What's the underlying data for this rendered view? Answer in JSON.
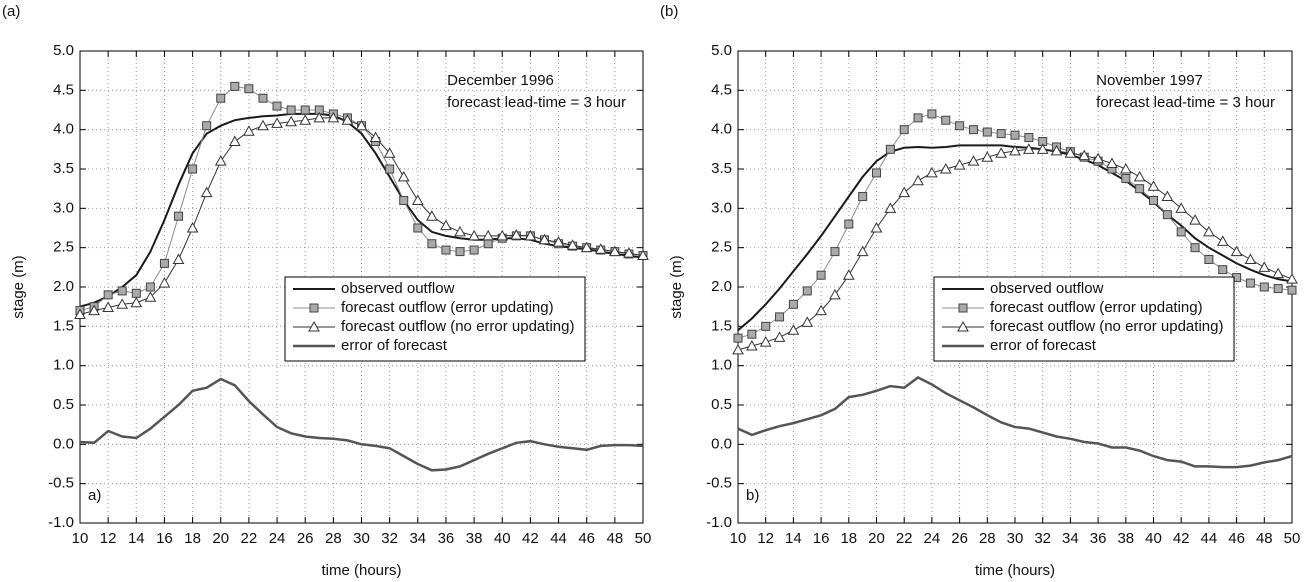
{
  "chart_data": [
    {
      "type": "line",
      "panel_label": "(a)",
      "inner_label": "a)",
      "annotations": [
        "December 1996",
        "forecast lead-time = 3 hour"
      ],
      "x_label": "time (hours)",
      "y_label": "stage (m)",
      "x": [
        10,
        11,
        12,
        13,
        14,
        15,
        16,
        17,
        18,
        19,
        20,
        21,
        22,
        23,
        24,
        25,
        26,
        27,
        28,
        29,
        30,
        31,
        32,
        33,
        34,
        35,
        36,
        37,
        38,
        39,
        40,
        41,
        42,
        43,
        44,
        45,
        46,
        47,
        48,
        49,
        50
      ],
      "xlim": [
        10,
        50
      ],
      "xticks": [
        10,
        12,
        14,
        16,
        18,
        20,
        22,
        24,
        26,
        28,
        30,
        32,
        34,
        36,
        38,
        40,
        42,
        44,
        46,
        48,
        50
      ],
      "ylim": [
        -1,
        5
      ],
      "yticks": [
        {
          "value": -1,
          "label": "-1.0"
        },
        -0.5,
        {
          "value": 0,
          "label": "0.0"
        },
        0.5,
        {
          "value": 1,
          "label": "1.0"
        },
        1.5,
        {
          "value": 2,
          "label": "2.0"
        },
        2.5,
        {
          "value": 3,
          "label": "3.0"
        },
        3.5,
        {
          "value": 4,
          "label": "4.0"
        },
        4.5,
        {
          "value": 5,
          "label": "5.0"
        }
      ],
      "grid": true,
      "legend_position": "center right",
      "series": [
        {
          "name": "observed outflow",
          "color": "#1a1a1a",
          "marker": "none",
          "line_width": 2,
          "values": [
            1.75,
            1.8,
            1.88,
            2.0,
            2.15,
            2.45,
            2.85,
            3.3,
            3.7,
            3.95,
            4.05,
            4.12,
            4.15,
            4.17,
            4.18,
            4.2,
            4.2,
            4.2,
            4.18,
            4.1,
            3.95,
            3.7,
            3.4,
            3.1,
            2.85,
            2.7,
            2.65,
            2.62,
            2.6,
            2.6,
            2.62,
            2.62,
            2.6,
            2.55,
            2.52,
            2.5,
            2.48,
            2.45,
            2.42,
            2.4,
            2.37
          ]
        },
        {
          "name": "forecast outflow (error updating)",
          "color": "#8c8c8c",
          "marker": "square",
          "line_width": 1,
          "values": [
            1.7,
            1.75,
            1.9,
            1.95,
            1.92,
            2.0,
            2.3,
            2.9,
            3.5,
            4.05,
            4.4,
            4.55,
            4.52,
            4.4,
            4.3,
            4.25,
            4.25,
            4.25,
            4.2,
            4.15,
            4.05,
            3.85,
            3.5,
            3.1,
            2.75,
            2.55,
            2.47,
            2.45,
            2.47,
            2.55,
            2.62,
            2.65,
            2.65,
            2.6,
            2.55,
            2.52,
            2.5,
            2.47,
            2.45,
            2.42,
            2.4
          ]
        },
        {
          "name": "forecast outflow (no error updating)",
          "color": "#333333",
          "marker": "triangle",
          "line_width": 1,
          "values": [
            1.65,
            1.7,
            1.74,
            1.78,
            1.8,
            1.87,
            2.05,
            2.35,
            2.75,
            3.2,
            3.6,
            3.85,
            3.98,
            4.05,
            4.08,
            4.1,
            4.12,
            4.15,
            4.15,
            4.12,
            4.05,
            3.9,
            3.7,
            3.4,
            3.1,
            2.9,
            2.78,
            2.7,
            2.65,
            2.65,
            2.65,
            2.66,
            2.65,
            2.6,
            2.57,
            2.53,
            2.5,
            2.48,
            2.45,
            2.43,
            2.4
          ]
        },
        {
          "name": "error of forecast",
          "color": "#555555",
          "marker": "none",
          "line_width": 2.5,
          "values": [
            0.03,
            0.02,
            0.17,
            0.1,
            0.08,
            0.2,
            0.35,
            0.5,
            0.68,
            0.72,
            0.83,
            0.75,
            0.55,
            0.38,
            0.22,
            0.14,
            0.1,
            0.08,
            0.07,
            0.05,
            0.0,
            -0.02,
            -0.05,
            -0.15,
            -0.25,
            -0.33,
            -0.32,
            -0.28,
            -0.2,
            -0.12,
            -0.05,
            0.02,
            0.04,
            0.0,
            -0.03,
            -0.05,
            -0.07,
            -0.02,
            -0.01,
            -0.01,
            -0.02
          ]
        }
      ]
    },
    {
      "type": "line",
      "panel_label": "(b)",
      "inner_label": "b)",
      "annotations": [
        "November 1997",
        "forecast lead-time = 3 hour"
      ],
      "x_label": "time (hours)",
      "y_label": "stage (m)",
      "x": [
        10,
        11,
        12,
        13,
        14,
        15,
        16,
        17,
        18,
        19,
        20,
        21,
        22,
        23,
        24,
        25,
        26,
        27,
        28,
        29,
        30,
        31,
        32,
        33,
        34,
        35,
        36,
        37,
        38,
        39,
        40,
        41,
        42,
        43,
        44,
        45,
        46,
        47,
        48,
        49,
        50
      ],
      "xlim": [
        10,
        50
      ],
      "xticks": [
        10,
        12,
        14,
        16,
        18,
        20,
        22,
        24,
        26,
        28,
        30,
        32,
        34,
        36,
        38,
        40,
        42,
        44,
        46,
        48,
        50
      ],
      "ylim": [
        -1,
        5
      ],
      "yticks": [
        {
          "value": -1,
          "label": "-1.0"
        },
        -0.5,
        {
          "value": 0,
          "label": "0.0"
        },
        0.5,
        {
          "value": 1,
          "label": "1.0"
        },
        1.5,
        {
          "value": 2,
          "label": "2.0"
        },
        2.5,
        {
          "value": 3,
          "label": "3.0"
        },
        3.5,
        {
          "value": 4,
          "label": "4.0"
        },
        4.5,
        {
          "value": 5,
          "label": "5.0"
        }
      ],
      "grid": true,
      "legend_position": "center right",
      "series": [
        {
          "name": "observed outflow",
          "color": "#1a1a1a",
          "marker": "none",
          "line_width": 2,
          "values": [
            1.45,
            1.6,
            1.78,
            1.98,
            2.2,
            2.42,
            2.65,
            2.9,
            3.15,
            3.4,
            3.6,
            3.72,
            3.77,
            3.78,
            3.77,
            3.78,
            3.8,
            3.8,
            3.8,
            3.8,
            3.78,
            3.77,
            3.75,
            3.72,
            3.68,
            3.62,
            3.55,
            3.45,
            3.35,
            3.22,
            3.08,
            2.92,
            2.78,
            2.62,
            2.5,
            2.4,
            2.3,
            2.22,
            2.15,
            2.1,
            2.07
          ]
        },
        {
          "name": "forecast outflow (error updating)",
          "color": "#8c8c8c",
          "marker": "square",
          "line_width": 1,
          "values": [
            1.35,
            1.4,
            1.5,
            1.62,
            1.78,
            1.95,
            2.15,
            2.45,
            2.8,
            3.15,
            3.45,
            3.75,
            4.0,
            4.15,
            4.2,
            4.12,
            4.05,
            4.0,
            3.97,
            3.95,
            3.93,
            3.9,
            3.85,
            3.78,
            3.72,
            3.65,
            3.6,
            3.5,
            3.38,
            3.25,
            3.1,
            2.92,
            2.7,
            2.5,
            2.35,
            2.22,
            2.12,
            2.05,
            2.0,
            1.98,
            1.96
          ]
        },
        {
          "name": "forecast outflow (no error updating)",
          "color": "#333333",
          "marker": "triangle",
          "line_width": 1,
          "values": [
            1.2,
            1.25,
            1.3,
            1.36,
            1.45,
            1.55,
            1.7,
            1.9,
            2.15,
            2.45,
            2.75,
            3.0,
            3.2,
            3.35,
            3.45,
            3.5,
            3.55,
            3.6,
            3.65,
            3.7,
            3.73,
            3.75,
            3.75,
            3.73,
            3.7,
            3.67,
            3.63,
            3.57,
            3.5,
            3.4,
            3.28,
            3.15,
            3.0,
            2.85,
            2.7,
            2.58,
            2.45,
            2.35,
            2.25,
            2.17,
            2.1
          ]
        },
        {
          "name": "error of forecast",
          "color": "#555555",
          "marker": "none",
          "line_width": 2.5,
          "values": [
            0.2,
            0.12,
            0.18,
            0.23,
            0.27,
            0.32,
            0.37,
            0.45,
            0.6,
            0.63,
            0.68,
            0.74,
            0.72,
            0.85,
            0.76,
            0.65,
            0.56,
            0.47,
            0.37,
            0.28,
            0.22,
            0.2,
            0.15,
            0.1,
            0.07,
            0.03,
            0.01,
            -0.04,
            -0.04,
            -0.08,
            -0.15,
            -0.2,
            -0.22,
            -0.28,
            -0.28,
            -0.29,
            -0.29,
            -0.27,
            -0.23,
            -0.2,
            -0.15
          ]
        }
      ]
    }
  ]
}
